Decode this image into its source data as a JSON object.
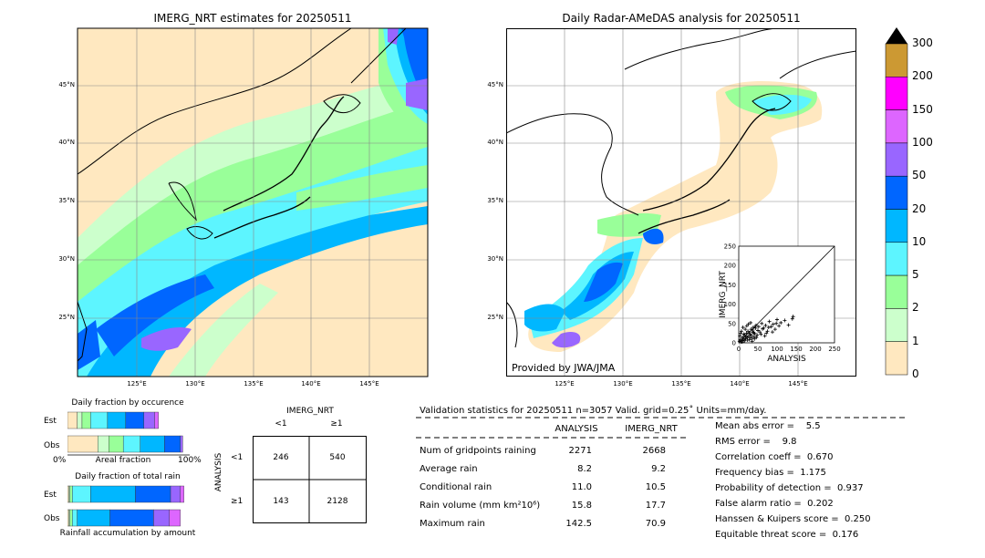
{
  "maps": {
    "left_title": "IMERG_NRT estimates for 20250511",
    "right_title": "Daily Radar-AMeDAS analysis for 20250511",
    "lat_labels": [
      "45°N",
      "40°N",
      "35°N",
      "30°N",
      "25°N"
    ],
    "lon_labels": [
      "125°E",
      "130°E",
      "135°E",
      "140°E",
      "145°E"
    ],
    "credit": "Provided by JWA/JMA"
  },
  "colorbar": {
    "labels": [
      "300",
      "200",
      "150",
      "100",
      "50",
      "20",
      "10",
      "5",
      "2",
      "1",
      "0"
    ],
    "colors": [
      "#cc9933",
      "#ff00ff",
      "#dd66ff",
      "#9966ff",
      "#0066ff",
      "#00b7ff",
      "#5df5ff",
      "#99ff99",
      "#ccffcc",
      "#ffe8c0"
    ]
  },
  "fraction_occurrence": {
    "title": "Daily fraction by occurence",
    "est_label": "Est",
    "obs_label": "Obs",
    "axis_left": "0%",
    "axis_mid": "Areal fraction",
    "axis_right": "100%"
  },
  "fraction_total": {
    "title": "Daily fraction of total rain",
    "est_label": "Est",
    "obs_label": "Obs",
    "caption": "Rainfall accumulation by amount"
  },
  "contingency": {
    "col_header": "IMERG_NRT",
    "col_lt1": "<1",
    "col_ge1": "≥1",
    "row_header": "ANALYSIS",
    "row_lt1": "<1",
    "row_ge1": "≥1",
    "a": "246",
    "b": "540",
    "c": "143",
    "d": "2128"
  },
  "validation": {
    "header": "Validation statistics for 20250511  n=3057 Valid. grid=0.25˚ Units=mm/day.",
    "col_analysis": "ANALYSIS",
    "col_imerg": "IMERG_NRT",
    "rows": [
      {
        "label": "Num of gridpoints raining",
        "analysis": "2271",
        "imerg": "2668"
      },
      {
        "label": "Average rain",
        "analysis": "8.2",
        "imerg": "9.2"
      },
      {
        "label": "Conditional rain",
        "analysis": "11.0",
        "imerg": "10.5"
      },
      {
        "label": "Rain volume (mm km²10⁶)",
        "analysis": "15.8",
        "imerg": "17.7"
      },
      {
        "label": "Maximum rain",
        "analysis": "142.5",
        "imerg": "70.9"
      }
    ],
    "scores": [
      "Mean abs error =    5.5",
      "RMS error =    9.8",
      "Correlation coeff =  0.670",
      "Frequency bias =  1.175",
      "Probability of detection =  0.937",
      "False alarm ratio =  0.202",
      "Hanssen & Kuipers score =  0.250",
      "Equitable threat score =  0.176"
    ]
  },
  "chart_data": [
    {
      "type": "scatter",
      "xlabel": "ANALYSIS",
      "ylabel": "IMERG_NRT",
      "xlim": [
        0,
        250
      ],
      "ylim": [
        0,
        250
      ],
      "ticks": [
        0,
        50,
        100,
        150,
        200,
        250
      ],
      "points": [
        [
          2,
          4
        ],
        [
          4,
          8
        ],
        [
          6,
          3
        ],
        [
          8,
          12
        ],
        [
          10,
          6
        ],
        [
          12,
          15
        ],
        [
          14,
          9
        ],
        [
          16,
          20
        ],
        [
          18,
          11
        ],
        [
          20,
          25
        ],
        [
          22,
          14
        ],
        [
          24,
          30
        ],
        [
          26,
          18
        ],
        [
          28,
          8
        ],
        [
          30,
          22
        ],
        [
          32,
          35
        ],
        [
          34,
          12
        ],
        [
          36,
          28
        ],
        [
          38,
          40
        ],
        [
          40,
          16
        ],
        [
          42,
          24
        ],
        [
          45,
          45
        ],
        [
          48,
          20
        ],
        [
          50,
          32
        ],
        [
          55,
          28
        ],
        [
          60,
          50
        ],
        [
          65,
          38
        ],
        [
          70,
          45
        ],
        [
          75,
          30
        ],
        [
          80,
          55
        ],
        [
          85,
          42
        ],
        [
          90,
          48
        ],
        [
          95,
          35
        ],
        [
          100,
          60
        ],
        [
          105,
          44
        ],
        [
          110,
          52
        ],
        [
          120,
          58
        ],
        [
          130,
          46
        ],
        [
          140,
          62
        ],
        [
          142,
          68
        ],
        [
          3,
          18
        ],
        [
          5,
          25
        ],
        [
          7,
          30
        ],
        [
          9,
          2
        ],
        [
          11,
          40
        ],
        [
          13,
          22
        ],
        [
          15,
          5
        ],
        [
          17,
          35
        ],
        [
          19,
          16
        ],
        [
          21,
          44
        ],
        [
          23,
          7
        ],
        [
          25,
          48
        ],
        [
          27,
          26
        ],
        [
          29,
          13
        ],
        [
          31,
          52
        ],
        [
          33,
          19
        ],
        [
          35,
          4
        ],
        [
          37,
          33
        ],
        [
          39,
          26
        ],
        [
          41,
          10
        ],
        [
          44,
          38
        ],
        [
          46,
          14
        ],
        [
          52,
          42
        ],
        [
          58,
          22
        ],
        [
          62,
          36
        ],
        [
          68,
          18
        ],
        [
          72,
          25
        ],
        [
          78,
          40
        ],
        [
          88,
          28
        ],
        [
          98,
          50
        ]
      ]
    },
    {
      "type": "bar",
      "title": "Daily fraction by occurence",
      "series": [
        {
          "name": "Est",
          "values": [
            0.08,
            0.04,
            0.07,
            0.14,
            0.15,
            0.15,
            0.09,
            0.03
          ]
        },
        {
          "name": "Obs",
          "values": [
            0.25,
            0.09,
            0.12,
            0.14,
            0.2,
            0.13,
            0.02,
            0.0
          ]
        }
      ]
    },
    {
      "type": "bar",
      "title": "Daily fraction of total rain",
      "series": [
        {
          "name": "Est",
          "values": [
            0.01,
            0.01,
            0.02,
            0.15,
            0.37,
            0.29,
            0.08,
            0.03
          ]
        },
        {
          "name": "Obs",
          "values": [
            0.01,
            0.01,
            0.02,
            0.04,
            0.27,
            0.36,
            0.13,
            0.09
          ]
        }
      ]
    }
  ]
}
